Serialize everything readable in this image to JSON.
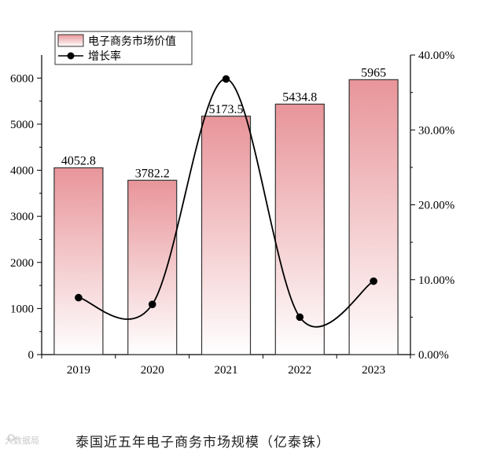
{
  "caption": "泰国近五年电子商务市场规模（亿泰铢）",
  "watermark": "大数据局",
  "colors": {
    "bar_top": "#e8959a",
    "bar_bottom": "#ffffff",
    "line": "#000000"
  },
  "chart_data": {
    "type": "bar",
    "categories": [
      "2019",
      "2020",
      "2021",
      "2022",
      "2023"
    ],
    "series": [
      {
        "name": "电子商务市场价值",
        "type": "bar",
        "axis": "left",
        "values": [
          4052.8,
          3782.2,
          5173.5,
          5434.8,
          5965
        ],
        "labels": [
          "4052.8",
          "3782.2",
          "5173.5",
          "5434.8",
          "5965"
        ]
      },
      {
        "name": "增长率",
        "type": "line",
        "axis": "right",
        "smooth": true,
        "values": [
          7.6,
          6.7,
          36.8,
          5.0,
          9.8
        ]
      }
    ],
    "y_left": {
      "min": 0,
      "max": 6500,
      "ticks": [
        "0",
        "1000",
        "2000",
        "3000",
        "4000",
        "5000",
        "6000"
      ]
    },
    "y_right": {
      "min": 0,
      "max": 40,
      "ticks": [
        "0.00%",
        "10.00%",
        "20.00%",
        "30.00%",
        "40.00%"
      ]
    },
    "legend": "top-left",
    "grid": false
  }
}
